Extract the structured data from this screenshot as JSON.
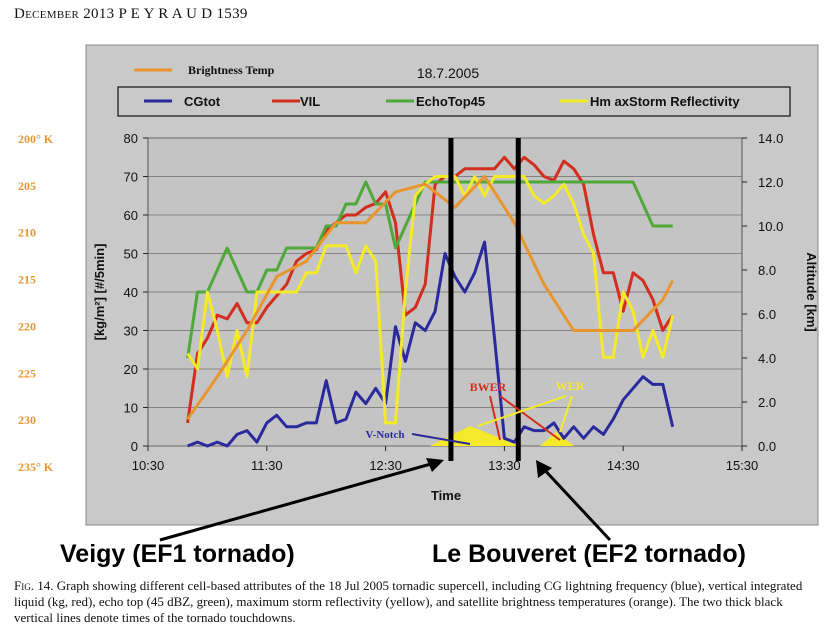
{
  "header": {
    "month_year": "December 2013",
    "author": "P E Y R A U D",
    "page": "1539"
  },
  "caption": {
    "fig_label": "Fig. 14.",
    "text": "Graph showing different cell-based attributes of the 18 Jul 2005 tornadic supercell, including CG lightning frequency (blue), vertical integrated liquid (kg, red), echo top (45 dBZ, green), maximum storm reflectivity (yellow), and satellite brightness temperatures (orange). The two thick black vertical lines denote times of the tornado touchdowns."
  },
  "tornadoes": {
    "left": "Veigy (EF1 tornado)",
    "right": "Le Bouveret (EF2 tornado)"
  },
  "colors": {
    "blue": "#2a2a9c",
    "red": "#d22d1e",
    "green": "#4ea83a",
    "yellow": "#f4ea2a",
    "orange": "#e8952e",
    "plot_bg": "#c8c8c8"
  },
  "chart_data": {
    "type": "line",
    "date": "18.7.2005",
    "xlabel": "Time",
    "x_ticks": [
      "10:30",
      "11:30",
      "12:30",
      "13:30",
      "14:30",
      "15:30"
    ],
    "xlim": [
      "10:30",
      "15:30"
    ],
    "left_axis": {
      "label": "[kg/m²]   [#/5min]",
      "ylim": [
        0,
        80
      ],
      "ticks": [
        0,
        10,
        20,
        30,
        40,
        50,
        60,
        70,
        80
      ]
    },
    "right_axis": {
      "label": "Altitude [km]",
      "ylim": [
        0,
        14
      ],
      "ticks": [
        "0.0",
        "2.0",
        "4.0",
        "6.0",
        "8.0",
        "10.0",
        "12.0",
        "14.0"
      ]
    },
    "brightness_axis": {
      "ticks": [
        "200° K",
        "205",
        "210",
        "215",
        "220",
        "225",
        "230",
        "235° K"
      ]
    },
    "grid": true,
    "legend_position": "top",
    "series": [
      {
        "name": "CGtot",
        "axis": "left",
        "color": "#2a2a9c",
        "x": [
          "10:50",
          "10:55",
          "11:00",
          "11:05",
          "11:10",
          "11:15",
          "11:20",
          "11:25",
          "11:30",
          "11:35",
          "11:40",
          "11:45",
          "11:50",
          "11:55",
          "12:00",
          "12:05",
          "12:10",
          "12:15",
          "12:20",
          "12:25",
          "12:30",
          "12:35",
          "12:40",
          "12:45",
          "12:50",
          "12:55",
          "13:00",
          "13:05",
          "13:10",
          "13:15",
          "13:20",
          "13:25",
          "13:30",
          "13:35",
          "13:40",
          "13:45",
          "13:50",
          "13:55",
          "14:00",
          "14:05",
          "14:10",
          "14:15",
          "14:20",
          "14:25",
          "14:30",
          "14:35",
          "14:40",
          "14:45",
          "14:50",
          "14:55"
        ],
        "y": [
          0,
          1,
          0,
          1,
          0,
          3,
          4,
          1,
          6,
          8,
          5,
          5,
          6,
          6,
          17,
          6,
          7,
          14,
          11,
          15,
          11,
          31,
          22,
          32,
          30,
          35,
          50,
          44,
          40,
          45,
          53,
          28,
          2,
          1,
          5,
          4,
          4,
          6,
          2,
          5,
          2,
          5,
          3,
          7,
          12,
          15,
          18,
          16,
          16,
          5
        ]
      },
      {
        "name": "VIL",
        "axis": "left",
        "color": "#d22d1e",
        "x": [
          "10:50",
          "10:55",
          "11:00",
          "11:05",
          "11:10",
          "11:15",
          "11:20",
          "11:25",
          "11:30",
          "11:35",
          "11:40",
          "11:45",
          "11:50",
          "11:55",
          "12:00",
          "12:05",
          "12:10",
          "12:15",
          "12:20",
          "12:25",
          "12:30",
          "12:35",
          "12:40",
          "12:45",
          "12:50",
          "12:55",
          "13:00",
          "13:05",
          "13:10",
          "13:15",
          "13:20",
          "13:25",
          "13:30",
          "13:35",
          "13:40",
          "13:45",
          "13:50",
          "13:55",
          "14:00",
          "14:05",
          "14:10",
          "14:15",
          "14:20",
          "14:25",
          "14:30",
          "14:35",
          "14:40",
          "14:45",
          "14:50",
          "14:55"
        ],
        "y": [
          6,
          24,
          28,
          34,
          33,
          37,
          32,
          32,
          36,
          39,
          42,
          48,
          50,
          51,
          56,
          58,
          60,
          60,
          62,
          63,
          66,
          58,
          34,
          36,
          42,
          68,
          70,
          70,
          72,
          72,
          72,
          72,
          75,
          72,
          75,
          73,
          70,
          69,
          74,
          72,
          68,
          55,
          45,
          45,
          35,
          45,
          43,
          38,
          30,
          34
        ]
      },
      {
        "name": "EchoTop45",
        "axis": "right",
        "color": "#4ea83a",
        "x": [
          "10:50",
          "10:55",
          "11:00",
          "11:05",
          "11:10",
          "11:15",
          "11:20",
          "11:25",
          "11:30",
          "11:35",
          "11:40",
          "11:45",
          "11:50",
          "11:55",
          "12:00",
          "12:05",
          "12:10",
          "12:15",
          "12:20",
          "12:25",
          "12:30",
          "12:35",
          "12:40",
          "12:45",
          "12:50",
          "12:55",
          "13:00",
          "13:05",
          "13:10",
          "13:15",
          "13:20",
          "13:25",
          "13:30",
          "13:35",
          "13:40",
          "13:45",
          "13:50",
          "13:55",
          "14:00",
          "14:05",
          "14:10",
          "14:15",
          "14:20",
          "14:25",
          "14:30",
          "14:35",
          "14:40",
          "14:45",
          "14:50",
          "14:55"
        ],
        "y": [
          4.0,
          7.0,
          7.0,
          8.0,
          9.0,
          8.0,
          7.0,
          7.0,
          8.0,
          8.0,
          9.0,
          9.0,
          9.0,
          9.0,
          10.0,
          10.0,
          11.0,
          11.0,
          12.0,
          11.0,
          11.0,
          9.0,
          10.0,
          11.0,
          12.0,
          12.0,
          12.0,
          12.0,
          12.0,
          12.0,
          12.0,
          12.0,
          12.0,
          12.0,
          12.0,
          12.0,
          12.0,
          12.0,
          12.0,
          12.0,
          12.0,
          12.0,
          12.0,
          12.0,
          12.0,
          12.0,
          11.0,
          10.0,
          10.0,
          10.0
        ]
      },
      {
        "name": "Hm axStorm Reflectivity",
        "axis": "left",
        "color": "#f4ea2a",
        "x": [
          "10:50",
          "10:55",
          "11:00",
          "11:05",
          "11:10",
          "11:15",
          "11:20",
          "11:25",
          "11:30",
          "11:35",
          "11:40",
          "11:45",
          "11:50",
          "11:55",
          "12:00",
          "12:05",
          "12:10",
          "12:15",
          "12:20",
          "12:25",
          "12:30",
          "12:35",
          "12:40",
          "12:45",
          "12:50",
          "12:55",
          "13:00",
          "13:05",
          "13:10",
          "13:15",
          "13:20",
          "13:25",
          "13:30",
          "13:35",
          "13:40",
          "13:45",
          "13:50",
          "13:55",
          "14:00",
          "14:05",
          "14:10",
          "14:15",
          "14:20",
          "14:25",
          "14:30",
          "14:35",
          "14:40",
          "14:45",
          "14:50",
          "14:55"
        ],
        "y": [
          24,
          20,
          40,
          30,
          18,
          30,
          18,
          40,
          40,
          40,
          40,
          40,
          45,
          45,
          52,
          52,
          52,
          45,
          52,
          48,
          6,
          6,
          40,
          65,
          68,
          70,
          70,
          70,
          65,
          70,
          65,
          70,
          70,
          70,
          70,
          65,
          63,
          65,
          68,
          63,
          55,
          50,
          23,
          23,
          40,
          35,
          23,
          30,
          23,
          34
        ]
      },
      {
        "name": "Brightness Temp",
        "axis": "brightness",
        "color": "#e8952e",
        "x": [
          "10:50",
          "11:05",
          "11:20",
          "11:35",
          "11:50",
          "12:05",
          "12:20",
          "12:35",
          "12:50",
          "13:05",
          "13:20",
          "13:35",
          "13:50",
          "14:05",
          "14:20",
          "14:35",
          "14:50",
          "14:55"
        ],
        "y": [
          7,
          18,
          30,
          44,
          48,
          58,
          58,
          66,
          68,
          62,
          70,
          58,
          42,
          30,
          30,
          30,
          38,
          43
        ]
      }
    ],
    "tornado_times": [
      "13:03",
      "13:37"
    ],
    "annotations": [
      "V-Notch",
      "BWER",
      "WER"
    ]
  }
}
